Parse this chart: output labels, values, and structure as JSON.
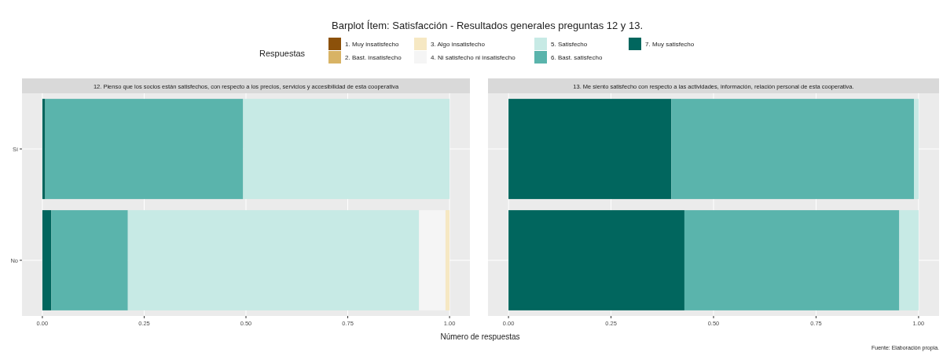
{
  "chart_data": [
    {
      "type": "bar",
      "orientation": "horizontal",
      "stacked": true,
      "title": "Barplot Ítem: Satisfacción - Resultados generales preguntas 12 y 13.",
      "legend_title": "Respuestas",
      "legend": "top",
      "xlabel": "Número de respuestas",
      "subtitle": "12. Pienso que los socios están satisfechos, con respecto a los precios, servicios y accesibilidad de esta cooperativa",
      "annotations": [
        "Fuente: Elaboración propia."
      ],
      "categories": [
        "Sí",
        "No"
      ],
      "xlim": [
        -0.05,
        1.05
      ],
      "xticks": [
        {
          "value": 0,
          "label": "0.00"
        },
        {
          "value": 0.25,
          "label": "0.25"
        },
        {
          "value": 0.5,
          "label": "0.50"
        },
        {
          "value": 0.75,
          "label": "0.75"
        },
        {
          "value": 1,
          "label": "1.00"
        }
      ],
      "grid": true,
      "series": [
        {
          "name": "7. Muy satisfecho",
          "color": "#01665e",
          "values": [
            0.007,
            0.022
          ]
        },
        {
          "name": "6. Bast. satisfecho",
          "color": "#5ab4ac",
          "values": [
            0.486,
            0.188
          ]
        },
        {
          "name": "5. Satisfecho",
          "color": "#c7eae5",
          "values": [
            0.507,
            0.715
          ]
        },
        {
          "name": "4. Ni satisfecho ni insatisfecho",
          "color": "#f5f5f5",
          "values": [
            0,
            0.065
          ]
        },
        {
          "name": "3. Algo insatisfecho",
          "color": "#f6e8c3",
          "values": [
            0,
            0.01
          ]
        },
        {
          "name": "2. Bast. insatisfecho",
          "color": "#d8b365",
          "values": [
            0,
            0
          ]
        },
        {
          "name": "1. Muy insatisfecho",
          "color": "#8c510a",
          "values": [
            0,
            0
          ]
        }
      ]
    },
    {
      "type": "bar",
      "orientation": "horizontal",
      "stacked": true,
      "subtitle": "13. Me siento satisfecho con respecto a las actividades, información, relación personal de esta cooperativa.",
      "categories": [
        null,
        null
      ],
      "tick_labels": "x",
      "xlim": [
        -0.05,
        1.05
      ],
      "xticks": [
        {
          "value": 0,
          "label": "0.00"
        },
        {
          "value": 0.25,
          "label": "0.25"
        },
        {
          "value": 0.5,
          "label": "0.50"
        },
        {
          "value": 0.75,
          "label": "0.75"
        },
        {
          "value": 1,
          "label": "1.00"
        }
      ],
      "grid": true,
      "series": [
        {
          "color": "#01665e",
          "values": [
            0.397,
            0.429
          ]
        },
        {
          "color": "#5ab4ac",
          "values": [
            0.592,
            0.524
          ]
        },
        {
          "color": "#c7eae5",
          "values": [
            0.011,
            0.047
          ]
        },
        {
          "color": "#f5f5f5",
          "values": [
            0,
            0
          ]
        },
        {
          "color": "#f6e8c3",
          "values": [
            0,
            0
          ]
        },
        {
          "color": "#d8b365",
          "values": [
            0,
            0
          ]
        },
        {
          "color": "#8c510a",
          "values": [
            0,
            0
          ]
        }
      ]
    }
  ]
}
